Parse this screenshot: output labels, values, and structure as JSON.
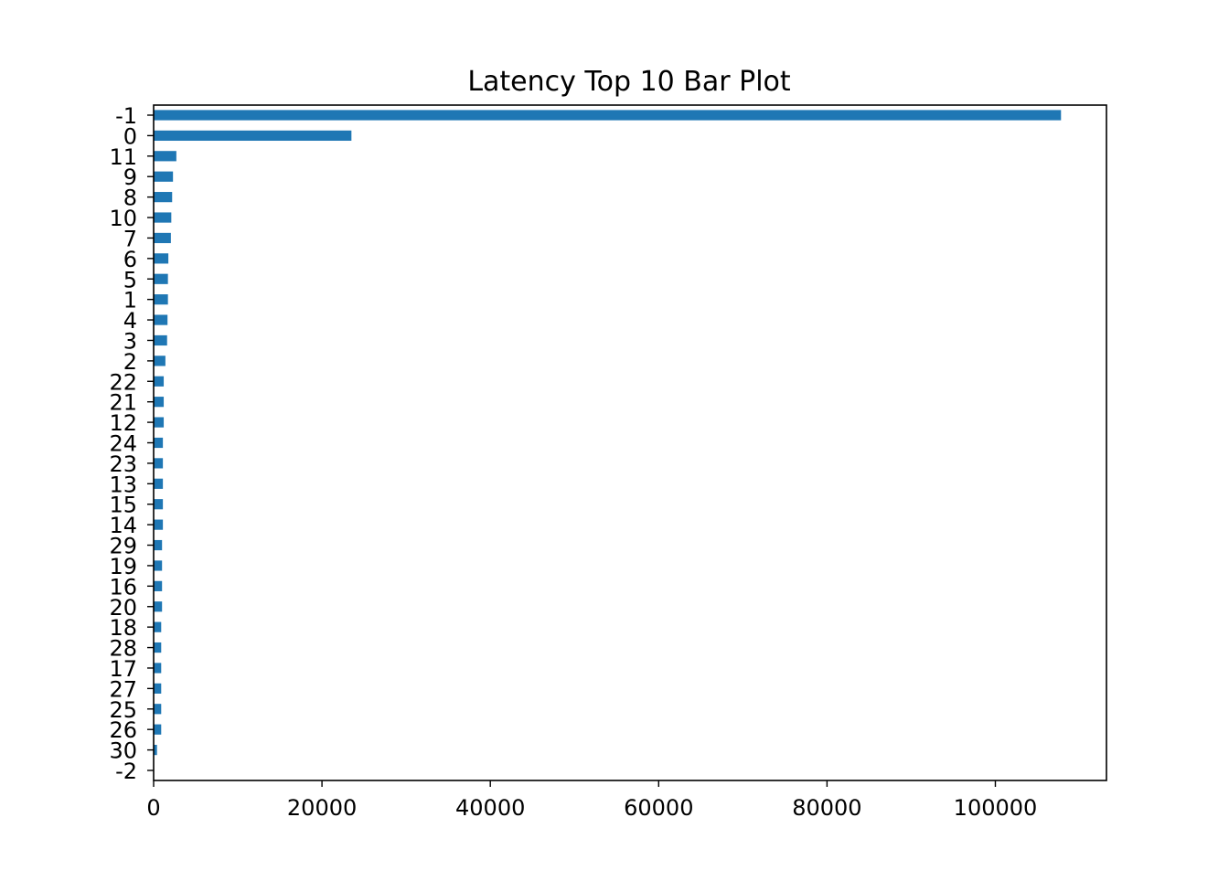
{
  "chart_data": {
    "type": "bar",
    "orientation": "horizontal",
    "title": "Latency Top 10 Bar Plot",
    "xlabel": "",
    "ylabel": "",
    "grid": false,
    "legend": "none",
    "bar_color": "#1f77b4",
    "categories": [
      "-1",
      "0",
      "11",
      "9",
      "8",
      "10",
      "7",
      "6",
      "5",
      "1",
      "4",
      "3",
      "2",
      "22",
      "21",
      "12",
      "24",
      "23",
      "13",
      "15",
      "14",
      "29",
      "19",
      "16",
      "20",
      "18",
      "28",
      "17",
      "27",
      "25",
      "26",
      "30",
      "-2"
    ],
    "values": [
      107800,
      23500,
      2700,
      2300,
      2200,
      2100,
      2050,
      1750,
      1700,
      1700,
      1650,
      1600,
      1400,
      1200,
      1200,
      1200,
      1100,
      1100,
      1100,
      1100,
      1100,
      1000,
      1000,
      1000,
      1000,
      900,
      900,
      900,
      900,
      900,
      900,
      400,
      0
    ],
    "xlim": [
      0,
      113200
    ],
    "xticks": [
      0,
      20000,
      40000,
      60000,
      80000,
      100000
    ],
    "xtick_labels": [
      "0",
      "20000",
      "40000",
      "60000",
      "80000",
      "100000"
    ]
  }
}
